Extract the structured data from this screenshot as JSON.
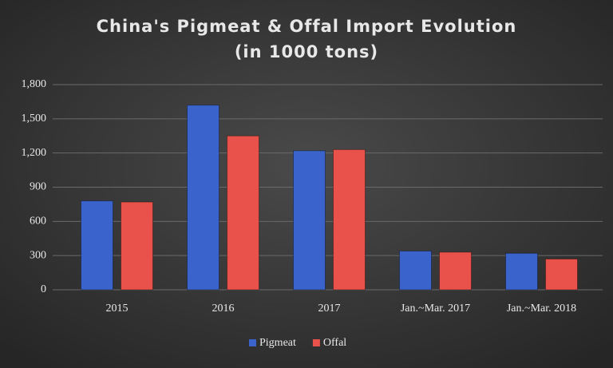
{
  "chart_data": {
    "type": "bar",
    "title": "China's Pigmeat & Offal Import Evolution",
    "subtitle": "(in 1000 tons)",
    "categories": [
      "2015",
      "2016",
      "2017",
      "Jan.~Mar. 2017",
      "Jan.~Mar. 2018"
    ],
    "series": [
      {
        "name": "Pigmeat",
        "color": "#3a63cc",
        "values": [
          780,
          1620,
          1220,
          340,
          320
        ]
      },
      {
        "name": "Offal",
        "color": "#e8524a",
        "values": [
          770,
          1350,
          1230,
          330,
          270
        ]
      }
    ],
    "ylim": [
      0,
      1800
    ],
    "yticks": [
      0,
      300,
      600,
      900,
      {
        "value": 1200,
        "label": "1,200"
      },
      {
        "value": 1500,
        "label": "1,500"
      },
      {
        "value": 1800,
        "label": "1,800"
      }
    ],
    "grid": true,
    "legend": "bottom"
  }
}
